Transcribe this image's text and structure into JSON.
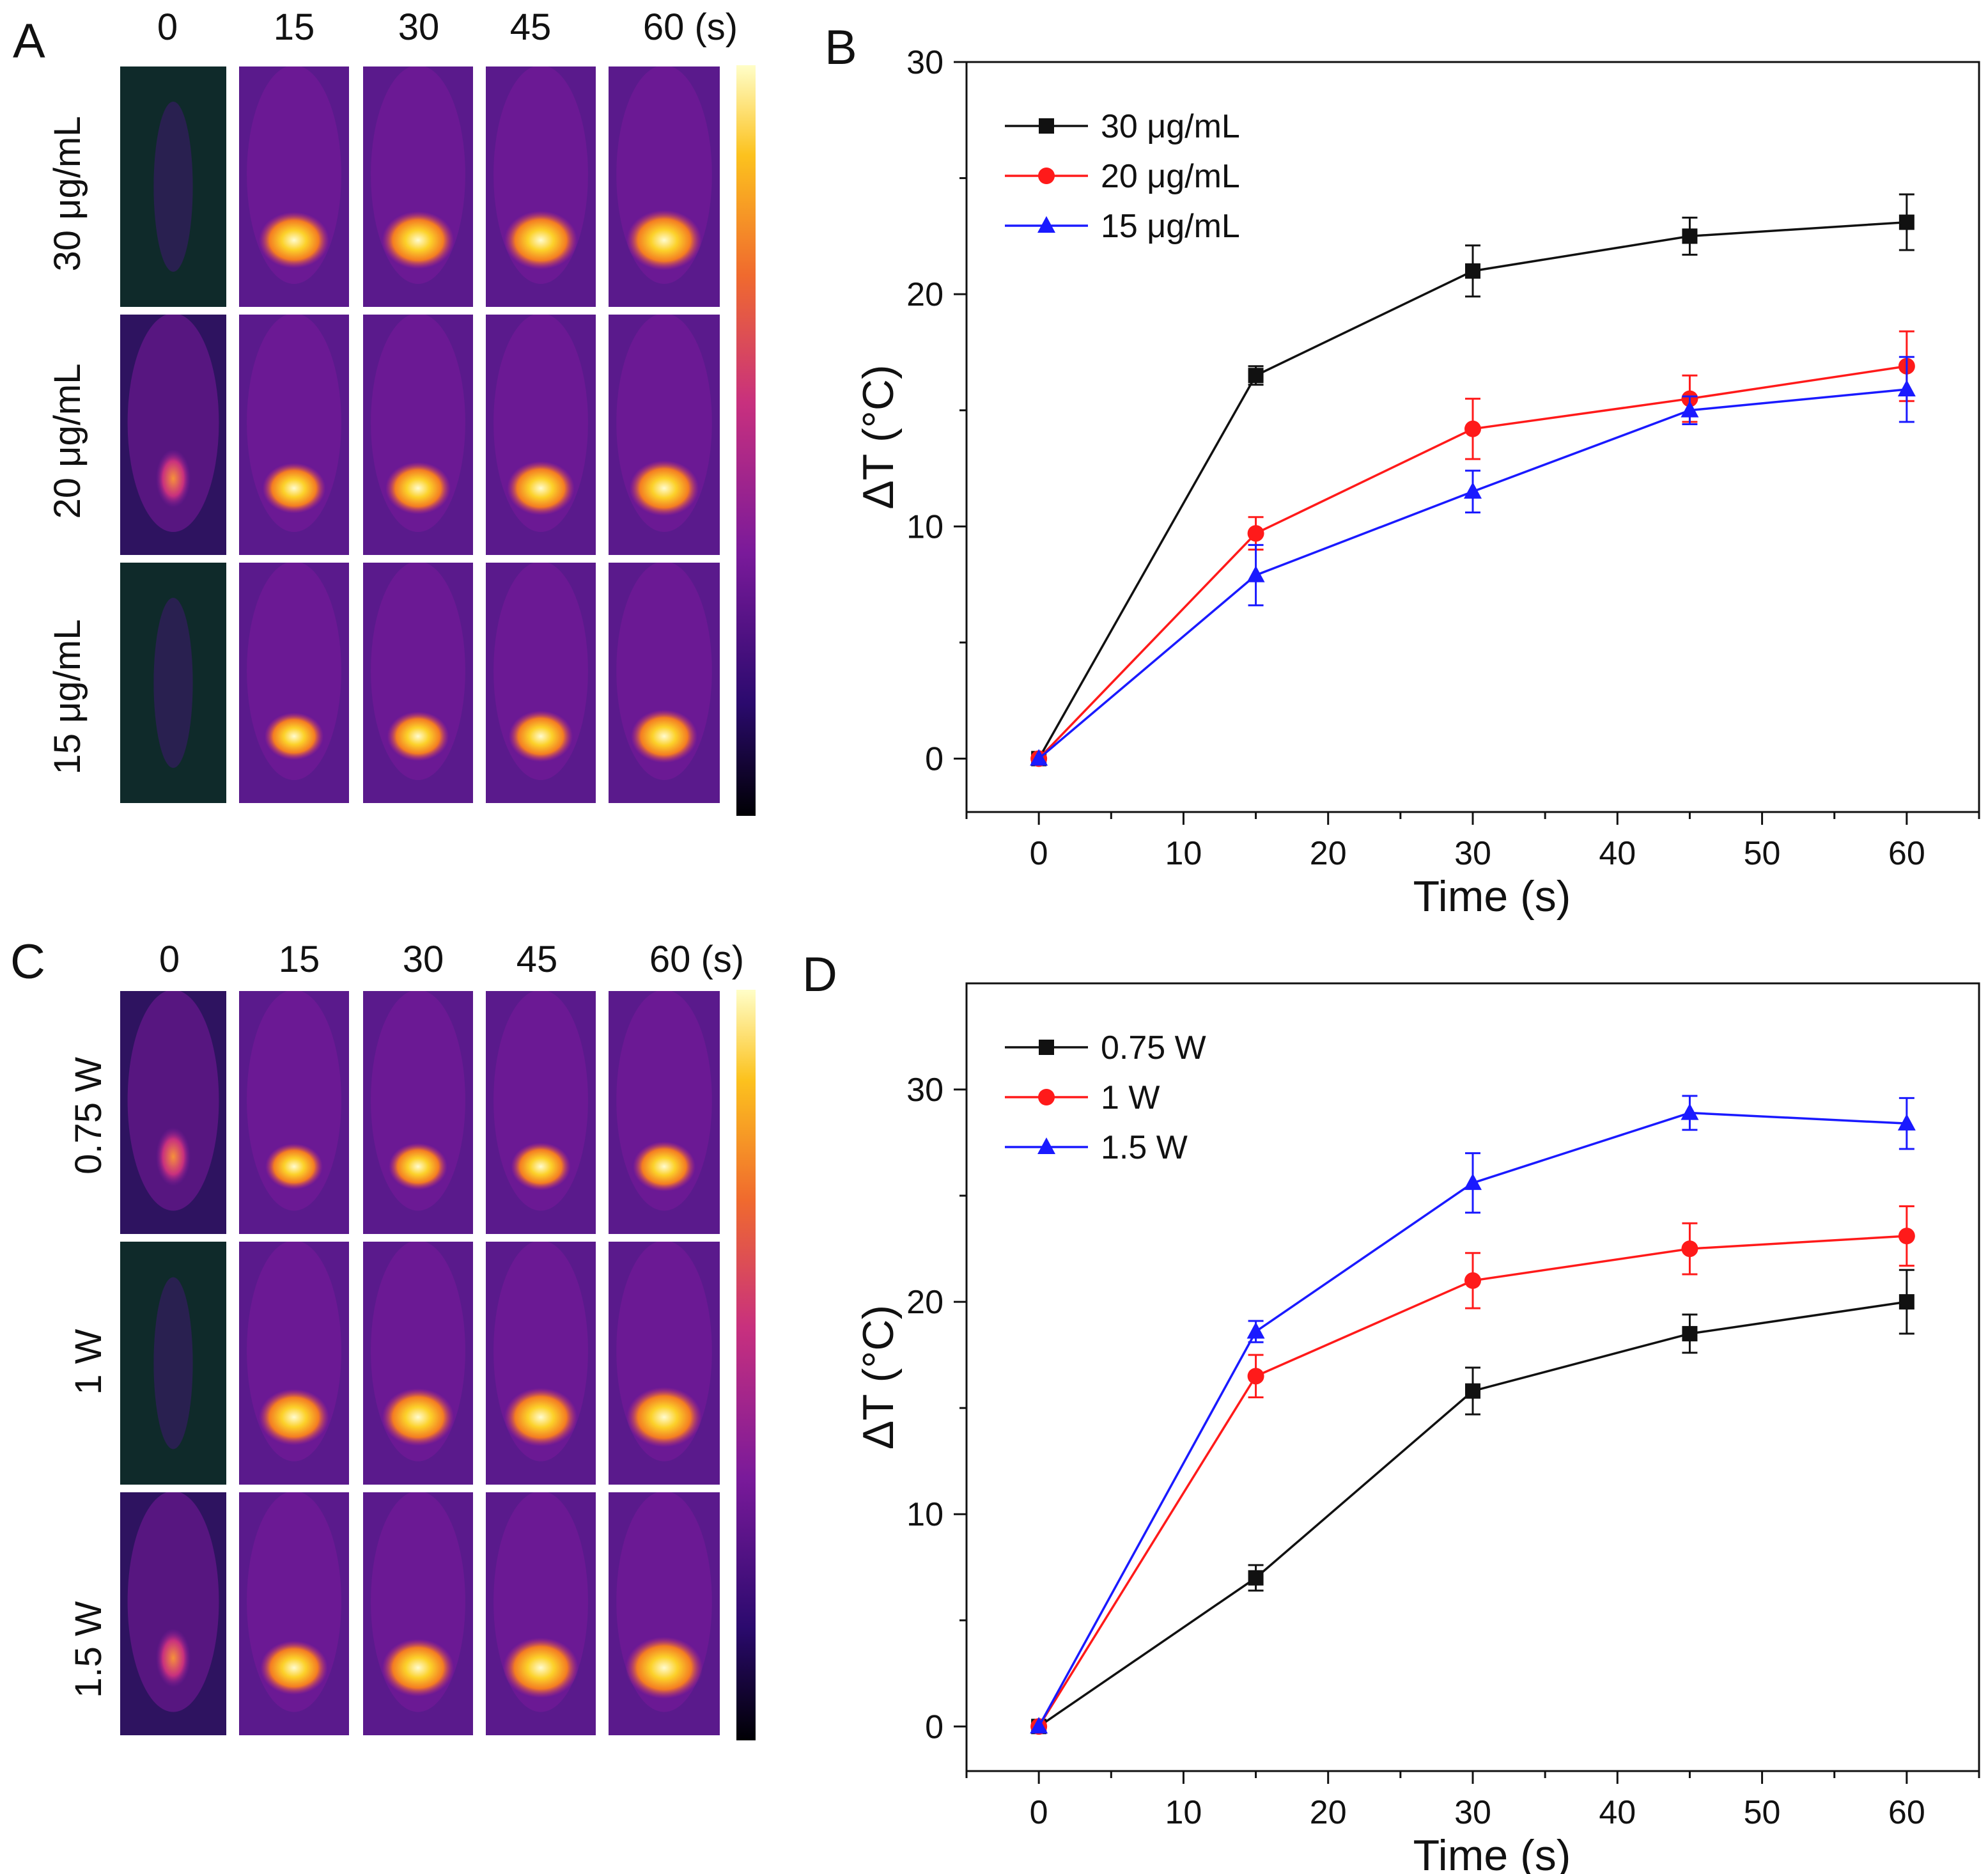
{
  "panels": {
    "A": {
      "letter": "A",
      "time_labels": [
        "0",
        "15",
        "30",
        "45",
        "60 (s)"
      ],
      "row_labels": [
        "30 μg/mL",
        "20 μg/mL",
        "15 μg/mL"
      ],
      "intensity": [
        [
          0.02,
          0.85,
          0.88,
          0.9,
          0.92
        ],
        [
          0.18,
          0.72,
          0.76,
          0.8,
          0.82
        ],
        [
          0.05,
          0.65,
          0.7,
          0.74,
          0.77
        ]
      ]
    },
    "C": {
      "letter": "C",
      "time_labels": [
        "0",
        "15",
        "30",
        "45",
        "60 (s)"
      ],
      "row_labels": [
        "0.75 W",
        "1 W",
        "1.5 W"
      ],
      "intensity": [
        [
          0.25,
          0.62,
          0.64,
          0.66,
          0.7
        ],
        [
          0.02,
          0.85,
          0.88,
          0.9,
          0.92
        ],
        [
          0.3,
          0.8,
          0.88,
          0.94,
          0.96
        ]
      ]
    }
  },
  "colors": {
    "black": "#111111",
    "red": "#ff1a1a",
    "blue": "#1a1aff",
    "panel_border": "#ffffff",
    "cold": "#0f2a2a"
  },
  "chart_data": [
    {
      "panel": "B",
      "type": "line",
      "xlabel": "Time (s)",
      "ylabel": "ΔT (°C)",
      "xlim": [
        -5,
        65
      ],
      "ylim": [
        -2.3,
        30
      ],
      "xticks": [
        0,
        10,
        20,
        30,
        40,
        50,
        60
      ],
      "yticks": [
        0,
        10,
        20,
        30
      ],
      "legend_position": "top-left",
      "x": [
        0,
        15,
        30,
        45,
        60
      ],
      "series": [
        {
          "name": "30 μg/mL",
          "color": "#111111",
          "marker": "square",
          "values": [
            0,
            16.5,
            21.0,
            22.5,
            23.1
          ],
          "errors": [
            0,
            0.4,
            1.1,
            0.8,
            1.2
          ]
        },
        {
          "name": "20 μg/mL",
          "color": "#ff1a1a",
          "marker": "circle",
          "values": [
            0,
            9.7,
            14.2,
            15.5,
            16.9
          ],
          "errors": [
            0,
            0.7,
            1.3,
            1.0,
            1.5
          ]
        },
        {
          "name": "15 μg/mL",
          "color": "#1a1aff",
          "marker": "triangle",
          "values": [
            0,
            7.9,
            11.5,
            15.0,
            15.9
          ],
          "errors": [
            0,
            1.3,
            0.9,
            0.6,
            1.4
          ]
        }
      ]
    },
    {
      "panel": "D",
      "type": "line",
      "xlabel": "Time (s)",
      "ylabel": "ΔT (°C)",
      "xlim": [
        -5,
        65
      ],
      "ylim": [
        -2.1,
        35
      ],
      "xticks": [
        0,
        10,
        20,
        30,
        40,
        50,
        60
      ],
      "yticks": [
        0,
        10,
        20,
        30
      ],
      "legend_position": "top-left",
      "x": [
        0,
        15,
        30,
        45,
        60
      ],
      "series": [
        {
          "name": "0.75 W",
          "color": "#111111",
          "marker": "square",
          "values": [
            0,
            7.0,
            15.8,
            18.5,
            20.0
          ],
          "errors": [
            0,
            0.6,
            1.1,
            0.9,
            1.5
          ]
        },
        {
          "name": "1 W",
          "color": "#ff1a1a",
          "marker": "circle",
          "values": [
            0,
            16.5,
            21.0,
            22.5,
            23.1
          ],
          "errors": [
            0,
            1.0,
            1.3,
            1.2,
            1.4
          ]
        },
        {
          "name": "1.5 W",
          "color": "#1a1aff",
          "marker": "triangle",
          "values": [
            0,
            18.6,
            25.6,
            28.9,
            28.4
          ],
          "errors": [
            0,
            0.5,
            1.4,
            0.8,
            1.2
          ]
        }
      ]
    }
  ]
}
